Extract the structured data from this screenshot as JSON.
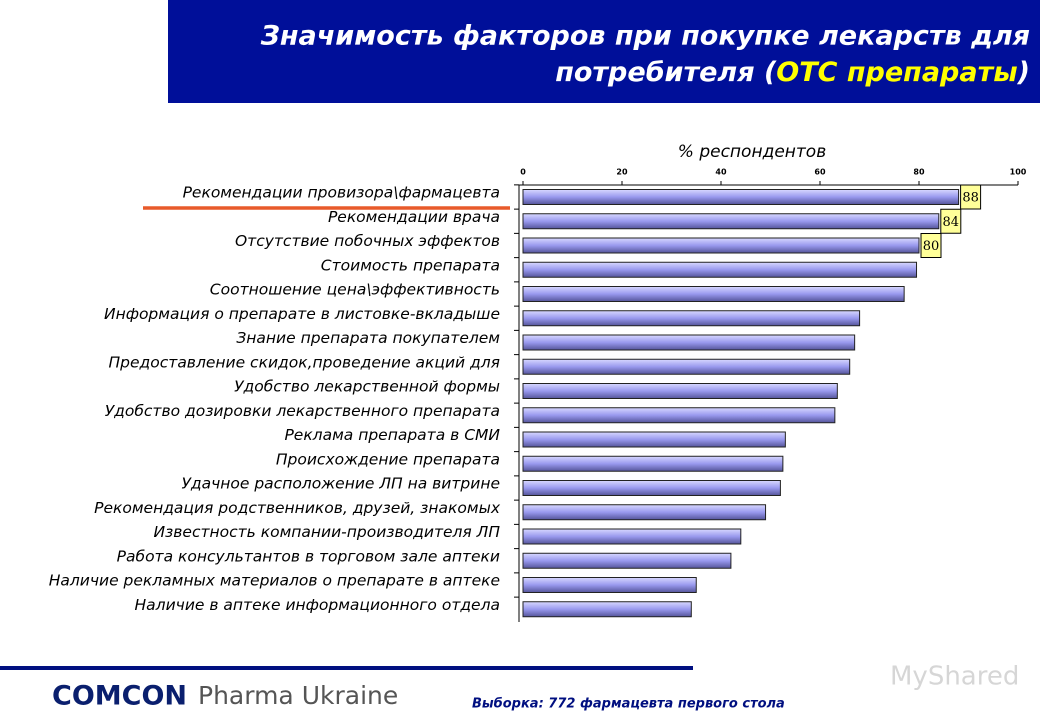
{
  "header": {
    "title_line1": "Значимость факторов при покупке лекарств для",
    "title_line2_start": "потребителя (",
    "title_highlight": "ОТС препараты",
    "title_line2_end": ")"
  },
  "chart_data": {
    "type": "hbar",
    "x_label": "% респондентов",
    "categories": [
      "Рекомендации провизора\\фармацевта",
      "Рекомендации врача",
      "Отсутствие побочных эффектов",
      "Стоимость препарата",
      "Соотношение цена\\эффективность",
      "Информация о препарате в листовке-вкладыше",
      "Знание препарата покупателем",
      "Предоставление скидок,проведение акций для",
      "Удобство лекарственной формы",
      "Удобство дозировки лекарственного препарата",
      "Реклама препарата в СМИ",
      "Происхождение препарата",
      "Удачное расположение ЛП на витрине",
      "Рекомендация родственников, друзей, знакомых",
      "Известность компании-производителя ЛП",
      "Работа консультантов в торговом зале аптеки",
      "Наличие рекламных материалов о препарате в аптеке",
      "Наличие в аптеке информационного отдела"
    ],
    "values": [
      88,
      84,
      80,
      79.5,
      77,
      68,
      67,
      66,
      63.5,
      63,
      53,
      52.5,
      52,
      49,
      44,
      42,
      35,
      34
    ],
    "color": "#9999ee",
    "xlim": [
      0,
      100
    ],
    "xticks": [
      0,
      20,
      40,
      60,
      80,
      100
    ]
  },
  "footer": {
    "logo": "COMCON",
    "logo_rest": "Pharma Ukraine",
    "sample": "Выборка: 772 фармацевта первого стола",
    "watermark": "MyShared"
  }
}
